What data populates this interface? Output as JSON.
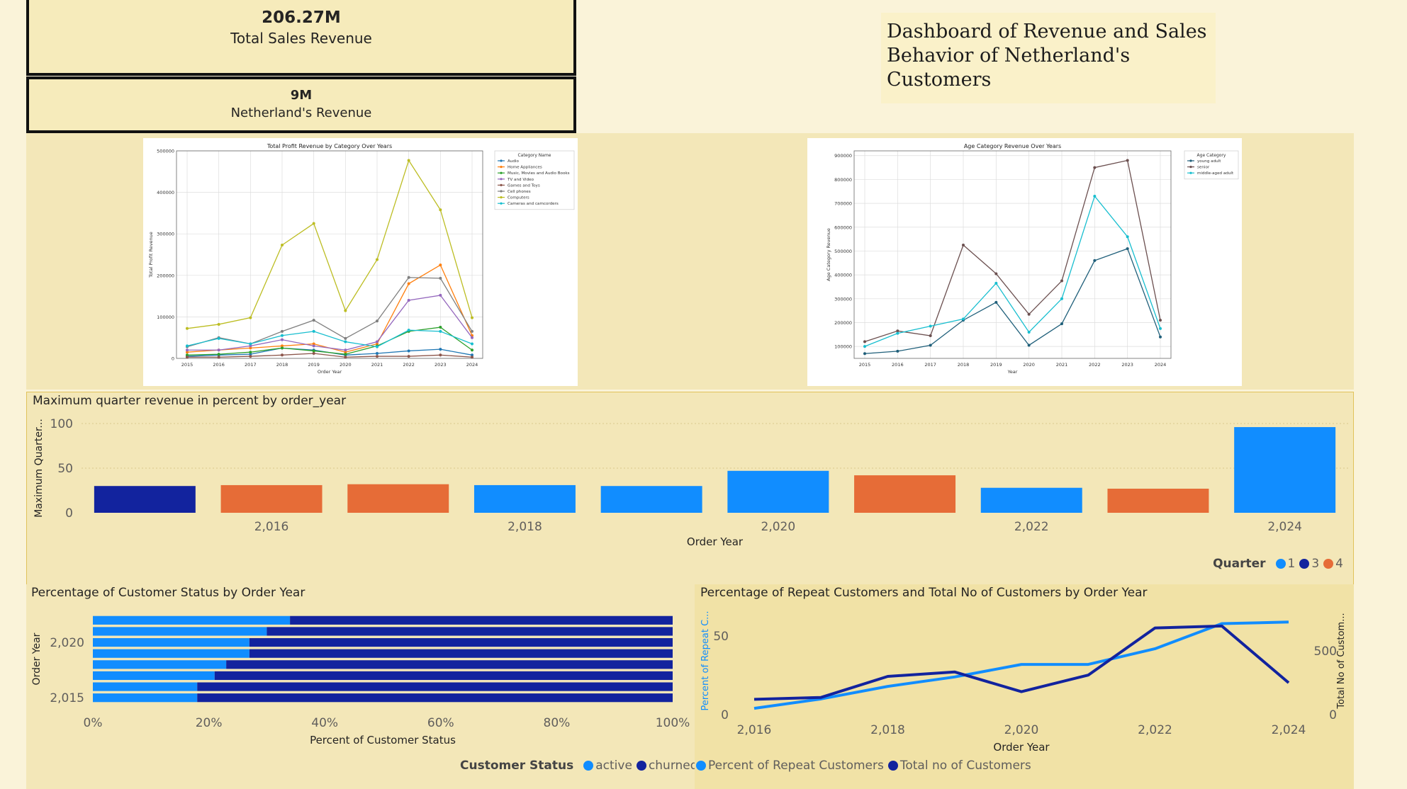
{
  "kpi": {
    "total_value": "206.27M",
    "total_label": "Total Sales Revenue",
    "nl_value": "9M",
    "nl_label": "Netherland's Revenue"
  },
  "title": "Dashboard of Revenue and Sales Behavior of Netherland's Customers",
  "colors": {
    "q1": "#118dff",
    "q3": "#12239e",
    "q4": "#e66c37",
    "active": "#118dff",
    "churned": "#12239e"
  },
  "chart_data": [
    {
      "type": "line",
      "title": "Total Profit Revenue by Category Over Years",
      "xlabel": "Order Year",
      "ylabel": "Total Profit Revenue",
      "x": [
        2015,
        2016,
        2017,
        2018,
        2019,
        2020,
        2021,
        2022,
        2023,
        2024
      ],
      "ylim": [
        0,
        500000
      ],
      "yticks": [
        0,
        100000,
        200000,
        300000,
        400000,
        500000
      ],
      "legend_title": "Category Name",
      "series": [
        {
          "name": "Audio",
          "color": "#1f77b4",
          "values": [
            5000,
            8000,
            10000,
            25000,
            20000,
            8000,
            12000,
            18000,
            22000,
            8000
          ]
        },
        {
          "name": "Home Appliances",
          "color": "#ff7f0e",
          "values": [
            15000,
            20000,
            25000,
            30000,
            35000,
            15000,
            35000,
            180000,
            225000,
            55000
          ]
        },
        {
          "name": "Music, Movies and Audio Books",
          "color": "#2ca02c",
          "values": [
            8000,
            10000,
            15000,
            25000,
            18000,
            10000,
            30000,
            65000,
            75000,
            20000
          ]
        },
        {
          "name": "TV and Video",
          "color": "#9467bd",
          "values": [
            20000,
            20000,
            30000,
            45000,
            30000,
            20000,
            40000,
            140000,
            152000,
            50000
          ]
        },
        {
          "name": "Games and Toys",
          "color": "#8c564b",
          "values": [
            3000,
            3000,
            5000,
            8000,
            12000,
            3000,
            5000,
            5000,
            8000,
            3000
          ]
        },
        {
          "name": "Cell phones",
          "color": "#7f7f7f",
          "values": [
            28000,
            50000,
            35000,
            65000,
            92000,
            48000,
            90000,
            195000,
            193000,
            65000
          ]
        },
        {
          "name": "Computers",
          "color": "#bcbd22",
          "values": [
            72000,
            82000,
            98000,
            273000,
            325000,
            115000,
            238000,
            477000,
            358000,
            98000
          ]
        },
        {
          "name": "Cameras and camcorders",
          "color": "#17becf",
          "values": [
            30000,
            48000,
            35000,
            55000,
            65000,
            40000,
            28000,
            68000,
            65000,
            35000
          ]
        }
      ]
    },
    {
      "type": "line",
      "title": "Age Category Revenue Over Years",
      "xlabel": "Year",
      "ylabel": "Age Category Revenue",
      "x": [
        2015,
        2016,
        2017,
        2018,
        2019,
        2020,
        2021,
        2022,
        2023,
        2024
      ],
      "ylim": [
        50000,
        920000
      ],
      "yticks": [
        100000,
        200000,
        300000,
        400000,
        500000,
        600000,
        700000,
        800000,
        900000
      ],
      "legend_title": "Age Category",
      "series": [
        {
          "name": "young adult",
          "color": "#1f5f7a",
          "values": [
            70000,
            80000,
            105000,
            210000,
            285000,
            105000,
            195000,
            460000,
            510000,
            140000
          ]
        },
        {
          "name": "senior",
          "color": "#6b4f4f",
          "values": [
            120000,
            165000,
            145000,
            525000,
            405000,
            235000,
            375000,
            850000,
            880000,
            210000
          ]
        },
        {
          "name": "middle-aged adult",
          "color": "#17becf",
          "values": [
            100000,
            155000,
            185000,
            215000,
            365000,
            160000,
            300000,
            730000,
            560000,
            175000
          ]
        }
      ]
    },
    {
      "type": "bar",
      "title": "Maximum quarter revenue in percent by order_year",
      "xlabel": "Order Year",
      "ylabel": "Maximum Quarter...",
      "categories": [
        2015,
        2016,
        2017,
        2018,
        2019,
        2020,
        2021,
        2022,
        2023,
        2024
      ],
      "values": [
        30,
        31,
        32,
        31,
        30,
        47,
        42,
        28,
        27,
        96
      ],
      "quarter": [
        3,
        4,
        4,
        1,
        1,
        1,
        4,
        1,
        4,
        1
      ],
      "ylim": [
        0,
        100
      ],
      "yticks": [
        0,
        50,
        100
      ],
      "xtick_labels": [
        {
          "x": 2016,
          "label": "2,016"
        },
        {
          "x": 2018,
          "label": "2,018"
        },
        {
          "x": 2020,
          "label": "2,020"
        },
        {
          "x": 2022,
          "label": "2,022"
        },
        {
          "x": 2024,
          "label": "2,024"
        }
      ],
      "legend_title": "Quarter",
      "legend": [
        {
          "label": "1",
          "key": "q1"
        },
        {
          "label": "3",
          "key": "q3"
        },
        {
          "label": "4",
          "key": "q4"
        }
      ]
    },
    {
      "type": "bar",
      "orientation": "horizontal-stacked-100",
      "title": "Percentage of Customer Status by Order Year",
      "xlabel": "Percent of Customer Status",
      "ylabel": "Order Year",
      "categories": [
        2022,
        2021,
        2020,
        2019,
        2018,
        2017,
        2016,
        2015
      ],
      "series": [
        {
          "name": "active",
          "values": [
            34,
            30,
            27,
            27,
            23,
            21,
            18,
            18
          ]
        },
        {
          "name": "churned",
          "values": [
            66,
            70,
            73,
            73,
            77,
            79,
            82,
            82
          ]
        }
      ],
      "xticks": [
        "0%",
        "20%",
        "40%",
        "60%",
        "80%",
        "100%"
      ],
      "ytick_labels": [
        {
          "y": 2020,
          "label": "2,020"
        },
        {
          "y": 2015,
          "label": "2,015"
        }
      ],
      "legend_title": "Customer Status",
      "legend": [
        {
          "label": "active",
          "key": "active"
        },
        {
          "label": "churned",
          "key": "churned"
        }
      ]
    },
    {
      "type": "line",
      "title": "Percentage of Repeat Customers and Total No of Customers by Order Year",
      "xlabel": "Order Year",
      "ylabel_left": "Percent of Repeat C...",
      "ylabel_right": "Total No of Custom...",
      "x": [
        2016,
        2017,
        2018,
        2019,
        2020,
        2021,
        2022,
        2023,
        2024
      ],
      "ylim_left": [
        0,
        65
      ],
      "ylim_right": [
        0,
        800
      ],
      "yticks_left": [
        0,
        50
      ],
      "yticks_right": [
        0,
        500
      ],
      "xtick_labels": [
        {
          "x": 2016,
          "label": "2,016"
        },
        {
          "x": 2018,
          "label": "2,018"
        },
        {
          "x": 2020,
          "label": "2,020"
        },
        {
          "x": 2022,
          "label": "2,022"
        },
        {
          "x": 2024,
          "label": "2,024"
        }
      ],
      "series": [
        {
          "name": "Percent of Repeat Customers",
          "axis": "left",
          "color": "#118dff",
          "values": [
            4,
            10,
            18,
            24,
            32,
            32,
            42,
            58,
            59
          ]
        },
        {
          "name": "Total no of Customers",
          "axis": "right",
          "color": "#12239e",
          "values": [
            120,
            135,
            300,
            335,
            180,
            310,
            680,
            695,
            250
          ]
        }
      ]
    }
  ]
}
